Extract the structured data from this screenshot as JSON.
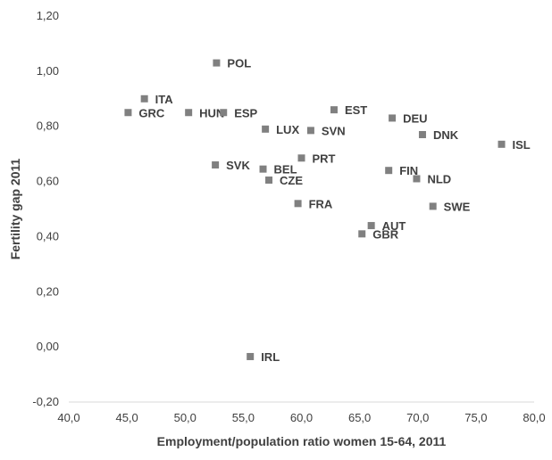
{
  "chart_data": {
    "type": "scatter",
    "title": "",
    "xlabel": "Employment/population ratio women 15-64, 2011",
    "ylabel": "Fertility gap 2011",
    "xlim": [
      40,
      80
    ],
    "ylim": [
      -0.2,
      1.2
    ],
    "x_ticks": [
      "40,0",
      "45,0",
      "50,0",
      "55,0",
      "60,0",
      "65,0",
      "70,0",
      "75,0",
      "80,0"
    ],
    "y_ticks": [
      "-0,20",
      "0,00",
      "0,20",
      "0,40",
      "0,60",
      "0,80",
      "1,00",
      "1,20"
    ],
    "grid": false,
    "legend": "none",
    "marker_color": "#808080",
    "points": [
      {
        "label": "POL",
        "x": 52.7,
        "y": 1.03
      },
      {
        "label": "ITA",
        "x": 46.5,
        "y": 0.9
      },
      {
        "label": "GRC",
        "x": 45.1,
        "y": 0.85
      },
      {
        "label": "HUN",
        "x": 50.3,
        "y": 0.85
      },
      {
        "label": "ESP",
        "x": 53.3,
        "y": 0.85
      },
      {
        "label": "EST",
        "x": 62.8,
        "y": 0.86
      },
      {
        "label": "DEU",
        "x": 67.8,
        "y": 0.83
      },
      {
        "label": "LUX",
        "x": 56.9,
        "y": 0.79
      },
      {
        "label": "SVN",
        "x": 60.8,
        "y": 0.785
      },
      {
        "label": "DNK",
        "x": 70.4,
        "y": 0.77
      },
      {
        "label": "ISL",
        "x": 77.2,
        "y": 0.735
      },
      {
        "label": "PRT",
        "x": 60.0,
        "y": 0.685
      },
      {
        "label": "SVK",
        "x": 52.6,
        "y": 0.66
      },
      {
        "label": "BEL",
        "x": 56.7,
        "y": 0.645
      },
      {
        "label": "FIN",
        "x": 67.5,
        "y": 0.64
      },
      {
        "label": "CZE",
        "x": 57.2,
        "y": 0.605
      },
      {
        "label": "NLD",
        "x": 69.9,
        "y": 0.61
      },
      {
        "label": "FRA",
        "x": 59.7,
        "y": 0.52
      },
      {
        "label": "SWE",
        "x": 71.3,
        "y": 0.51
      },
      {
        "label": "AUT",
        "x": 66.0,
        "y": 0.44
      },
      {
        "label": "GBR",
        "x": 65.2,
        "y": 0.41
      },
      {
        "label": "IRL",
        "x": 55.6,
        "y": -0.035
      }
    ]
  }
}
